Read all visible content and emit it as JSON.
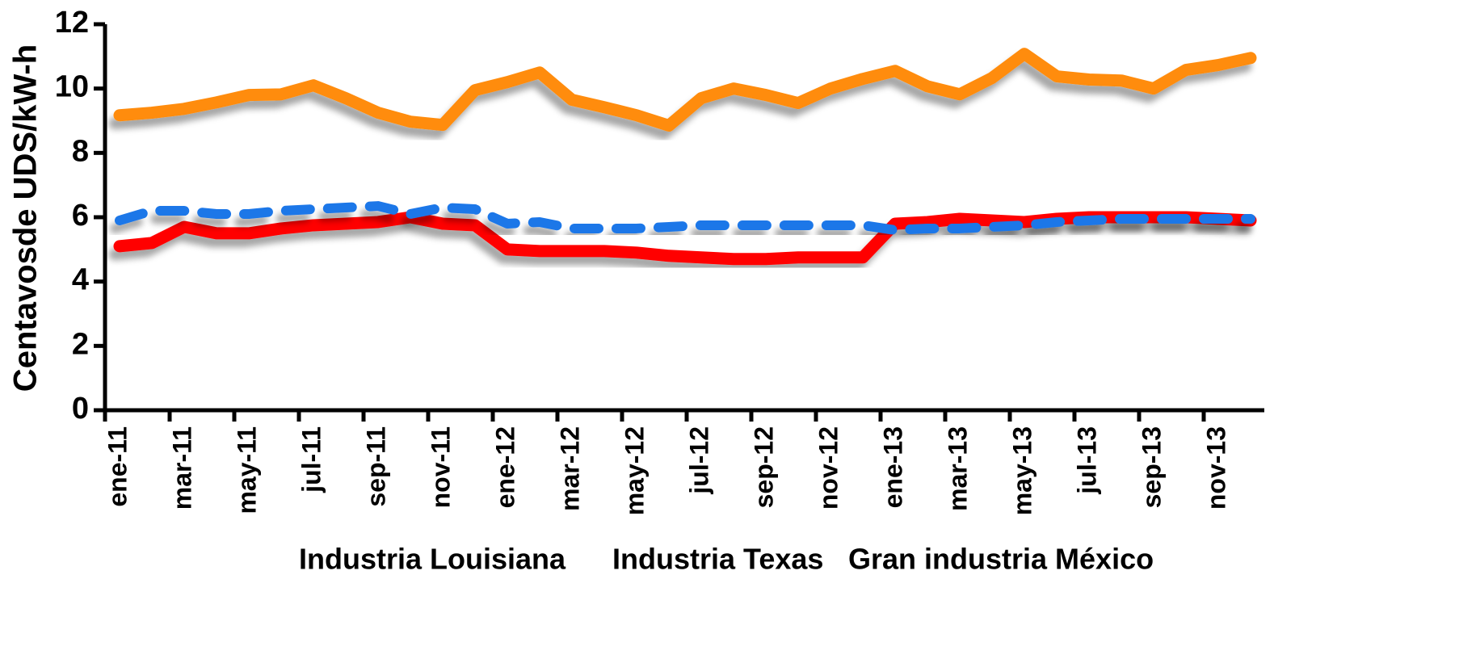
{
  "chart_data": {
    "type": "line",
    "ylabel": "Centavosde UDS/kW-h",
    "categories": [
      "ene-11",
      null,
      "mar-11",
      null,
      "may-11",
      null,
      "jul-11",
      null,
      "sep-11",
      null,
      "nov-11",
      null,
      "ene-12",
      null,
      "mar-12",
      null,
      "may-12",
      null,
      "jul-12",
      null,
      "sep-12",
      null,
      "nov-12",
      null,
      "ene-13",
      null,
      "mar-13",
      null,
      "may-13",
      null,
      "jul-13",
      null,
      "sep-13",
      null,
      "nov-13",
      null
    ],
    "ylim": [
      0,
      12
    ],
    "yticks": [
      0,
      2,
      4,
      6,
      8,
      10,
      12
    ],
    "legend": "bottom",
    "series": [
      {
        "name": "Industria Louisiana",
        "color": "#ff0000",
        "style": "solid",
        "values": [
          5.1,
          5.2,
          5.7,
          5.5,
          5.5,
          5.65,
          5.75,
          5.8,
          5.85,
          6.0,
          5.8,
          5.75,
          5.0,
          4.95,
          4.95,
          4.95,
          4.9,
          4.8,
          4.75,
          4.7,
          4.7,
          4.75,
          4.75,
          4.75,
          5.8,
          5.85,
          5.95,
          5.9,
          5.85,
          5.95,
          6.0,
          6.0,
          6.0,
          6.0,
          5.95,
          5.9
        ]
      },
      {
        "name": "Industria Texas",
        "color": "#1f77e8",
        "style": "dashed",
        "values": [
          5.9,
          6.2,
          6.2,
          6.1,
          6.1,
          6.2,
          6.25,
          6.3,
          6.35,
          6.1,
          6.3,
          6.25,
          5.8,
          5.85,
          5.65,
          5.65,
          5.65,
          5.7,
          5.75,
          5.75,
          5.75,
          5.75,
          5.75,
          5.75,
          5.6,
          5.65,
          5.65,
          5.7,
          5.75,
          5.85,
          5.9,
          5.95,
          5.95,
          5.95,
          5.95,
          5.95
        ]
      },
      {
        "name": "Gran industria México",
        "color": "#ff8c10",
        "style": "solid",
        "values": [
          9.17,
          9.25,
          9.37,
          9.57,
          9.8,
          9.82,
          10.1,
          9.7,
          9.25,
          8.97,
          8.87,
          9.95,
          10.2,
          10.5,
          9.65,
          9.42,
          9.17,
          8.85,
          9.7,
          10.0,
          9.8,
          9.55,
          10.0,
          10.3,
          10.55,
          10.07,
          9.82,
          10.33,
          11.08,
          10.38,
          10.28,
          10.25,
          10.0,
          10.58,
          10.73,
          10.95
        ]
      }
    ]
  }
}
